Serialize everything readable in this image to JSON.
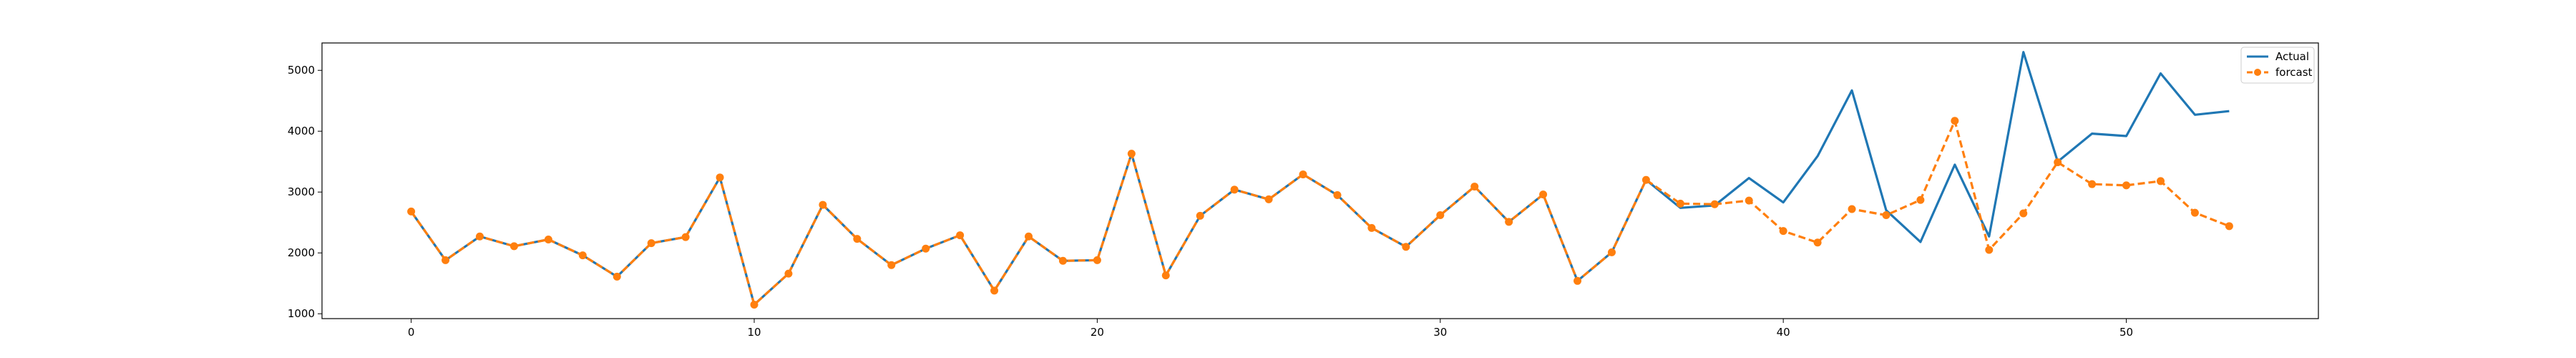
{
  "chart_data": {
    "type": "line",
    "title": "",
    "xlabel": "",
    "ylabel": "",
    "xlim": [
      -2.6,
      55.6
    ],
    "ylim": [
      920,
      5450
    ],
    "xticks": [
      0,
      10,
      20,
      30,
      40,
      50
    ],
    "yticks": [
      1000,
      2000,
      3000,
      4000,
      5000
    ],
    "grid": false,
    "legend_position": "top-right",
    "series": [
      {
        "name": "Actual",
        "color": "#1f77b4",
        "style": "solid",
        "marker": "none",
        "x": [
          0,
          1,
          2,
          3,
          4,
          5,
          6,
          7,
          8,
          9,
          10,
          11,
          12,
          13,
          14,
          15,
          16,
          17,
          18,
          19,
          20,
          21,
          22,
          23,
          24,
          25,
          26,
          27,
          28,
          29,
          30,
          31,
          32,
          33,
          34,
          35,
          36,
          37,
          38,
          39,
          40,
          41,
          42,
          43,
          44,
          45,
          46,
          47,
          48,
          49,
          50,
          51,
          52,
          53
        ],
        "values": [
          2680,
          1880,
          2270,
          2110,
          2220,
          1960,
          1610,
          2160,
          2260,
          3240,
          1150,
          1660,
          2790,
          2230,
          1800,
          2070,
          2290,
          1380,
          2270,
          1870,
          1880,
          3630,
          1630,
          2610,
          3040,
          2880,
          3290,
          2950,
          2410,
          2100,
          2620,
          3090,
          2510,
          2960,
          1540,
          2010,
          3200,
          2740,
          2780,
          3230,
          2830,
          3590,
          4670,
          2700,
          2180,
          3450,
          2270,
          5300,
          3500,
          3960,
          3920,
          4950,
          4270,
          4330
        ]
      },
      {
        "name": "forcast",
        "color": "#ff7f0e",
        "style": "dashed",
        "marker": "circle",
        "x": [
          0,
          1,
          2,
          3,
          4,
          5,
          6,
          7,
          8,
          9,
          10,
          11,
          12,
          13,
          14,
          15,
          16,
          17,
          18,
          19,
          20,
          21,
          22,
          23,
          24,
          25,
          26,
          27,
          28,
          29,
          30,
          31,
          32,
          33,
          34,
          35,
          36,
          37,
          38,
          39,
          40,
          41,
          42,
          43,
          44,
          45,
          46,
          47,
          48,
          49,
          50,
          51,
          52,
          53
        ],
        "values": [
          2680,
          1880,
          2270,
          2110,
          2220,
          1960,
          1610,
          2160,
          2260,
          3240,
          1150,
          1660,
          2790,
          2230,
          1800,
          2070,
          2290,
          1380,
          2270,
          1870,
          1880,
          3630,
          1630,
          2610,
          3040,
          2880,
          3290,
          2950,
          2410,
          2100,
          2620,
          3090,
          2510,
          2960,
          1540,
          2010,
          3200,
          2810,
          2800,
          2860,
          2360,
          2170,
          2720,
          2620,
          2870,
          4170,
          2050,
          2650,
          3490,
          3130,
          3110,
          3180,
          2660,
          2440
        ]
      }
    ]
  }
}
